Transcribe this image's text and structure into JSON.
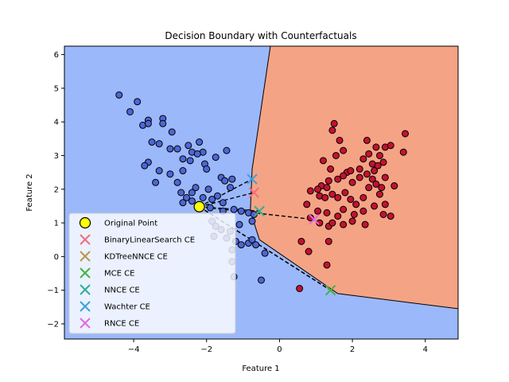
{
  "chart_data": {
    "type": "scatter",
    "title": "Decision Boundary with Counterfactuals",
    "xlabel": "Feature 1",
    "ylabel": "Feature 2",
    "xlim": [
      -5.9,
      4.9
    ],
    "ylim": [
      -2.45,
      6.25
    ],
    "xticks": [
      -4,
      -2,
      0,
      2,
      4
    ],
    "yticks": [
      -2,
      -1,
      0,
      1,
      2,
      3,
      4,
      5,
      6
    ],
    "legend_position": "lower-left",
    "colors": {
      "region_class0": "#9bb8fb",
      "region_class1": "#f4a485",
      "point_class0": "#4e66d6",
      "point_class1": "#c3122f",
      "original_point": "#ffff00",
      "connector": "#000000"
    },
    "boundary": [
      [
        -0.25,
        6.25
      ],
      [
        -0.75,
        2.6
      ],
      [
        -0.8,
        1.35
      ],
      [
        -0.55,
        0.5
      ],
      [
        1.6,
        -1.1
      ],
      [
        4.9,
        -1.55
      ]
    ],
    "class0_points": [
      [
        -4.4,
        4.8
      ],
      [
        -3.9,
        4.6
      ],
      [
        -4.1,
        4.3
      ],
      [
        -3.6,
        4.05
      ],
      [
        -3.75,
        3.9
      ],
      [
        -3.2,
        4.1
      ],
      [
        -3.2,
        3.95
      ],
      [
        -2.95,
        3.7
      ],
      [
        -3.6,
        3.95
      ],
      [
        -3.5,
        3.4
      ],
      [
        -3.3,
        3.35
      ],
      [
        -2.2,
        3.4
      ],
      [
        -2.5,
        3.3
      ],
      [
        -3.0,
        3.2
      ],
      [
        -2.8,
        3.2
      ],
      [
        -2.4,
        3.1
      ],
      [
        -2.1,
        3.1
      ],
      [
        -1.45,
        3.15
      ],
      [
        -2.25,
        3.05
      ],
      [
        -1.75,
        2.95
      ],
      [
        -3.6,
        2.8
      ],
      [
        -3.7,
        2.7
      ],
      [
        -2.65,
        2.9
      ],
      [
        -2.45,
        2.85
      ],
      [
        -2.05,
        2.75
      ],
      [
        -2.0,
        2.6
      ],
      [
        -3.3,
        2.55
      ],
      [
        -3.0,
        2.45
      ],
      [
        -2.65,
        2.55
      ],
      [
        -1.6,
        2.35
      ],
      [
        -1.5,
        2.25
      ],
      [
        -3.4,
        2.2
      ],
      [
        -2.8,
        2.2
      ],
      [
        -2.3,
        2.05
      ],
      [
        -1.95,
        2.0
      ],
      [
        -2.7,
        1.9
      ],
      [
        -2.4,
        1.9
      ],
      [
        -2.55,
        1.75
      ],
      [
        -2.1,
        1.75
      ],
      [
        -1.85,
        1.7
      ],
      [
        -1.7,
        1.8
      ],
      [
        -1.55,
        1.6
      ],
      [
        -2.65,
        1.6
      ],
      [
        -2.4,
        1.65
      ],
      [
        -1.9,
        1.45
      ],
      [
        -1.55,
        1.35
      ],
      [
        -1.25,
        1.4
      ],
      [
        -1.05,
        1.35
      ],
      [
        -0.85,
        1.3
      ],
      [
        -0.7,
        1.25
      ],
      [
        -1.85,
        1.05
      ],
      [
        -1.75,
        0.9
      ],
      [
        -1.6,
        0.8
      ],
      [
        -1.35,
        0.75
      ],
      [
        -1.2,
        0.45
      ],
      [
        -1.05,
        0.35
      ],
      [
        -0.85,
        0.4
      ],
      [
        -0.75,
        0.5
      ],
      [
        -0.65,
        0.35
      ],
      [
        -0.4,
        0.1
      ],
      [
        -1.3,
        0.2
      ],
      [
        -1.3,
        -0.15
      ],
      [
        -1.25,
        -0.6
      ],
      [
        -0.5,
        -0.7
      ],
      [
        -1.8,
        0.6
      ],
      [
        -1.45,
        0.55
      ],
      [
        -1.1,
        0.95
      ],
      [
        -0.75,
        1.05
      ],
      [
        -1.3,
        2.3
      ],
      [
        -1.35,
        2.05
      ]
    ],
    "class1_points": [
      [
        2.4,
        3.45
      ],
      [
        1.5,
        3.95
      ],
      [
        1.45,
        3.75
      ],
      [
        1.65,
        3.45
      ],
      [
        2.65,
        3.25
      ],
      [
        2.9,
        3.25
      ],
      [
        2.75,
        3.0
      ],
      [
        3.05,
        3.3
      ],
      [
        3.45,
        3.65
      ],
      [
        1.75,
        3.15
      ],
      [
        1.55,
        3.0
      ],
      [
        2.3,
        2.9
      ],
      [
        2.45,
        3.05
      ],
      [
        2.55,
        2.75
      ],
      [
        2.85,
        2.8
      ],
      [
        2.7,
        2.7
      ],
      [
        1.2,
        2.85
      ],
      [
        1.4,
        2.6
      ],
      [
        3.4,
        3.1
      ],
      [
        2.6,
        2.55
      ],
      [
        2.4,
        2.45
      ],
      [
        2.55,
        2.3
      ],
      [
        2.9,
        2.35
      ],
      [
        3.15,
        2.1
      ],
      [
        2.8,
        2.05
      ],
      [
        2.2,
        2.35
      ],
      [
        2.0,
        2.2
      ],
      [
        1.85,
        2.5
      ],
      [
        1.75,
        2.4
      ],
      [
        1.95,
        2.55
      ],
      [
        1.6,
        2.3
      ],
      [
        1.35,
        2.25
      ],
      [
        1.15,
        2.1
      ],
      [
        1.3,
        2.05
      ],
      [
        1.05,
        2.0
      ],
      [
        0.85,
        1.95
      ],
      [
        0.75,
        1.55
      ],
      [
        1.1,
        1.8
      ],
      [
        1.25,
        1.75
      ],
      [
        1.45,
        1.85
      ],
      [
        1.6,
        1.75
      ],
      [
        1.8,
        1.9
      ],
      [
        1.95,
        1.7
      ],
      [
        2.1,
        1.55
      ],
      [
        2.3,
        1.75
      ],
      [
        2.45,
        2.05
      ],
      [
        2.65,
        2.15
      ],
      [
        2.75,
        1.85
      ],
      [
        2.9,
        1.55
      ],
      [
        2.6,
        1.5
      ],
      [
        2.3,
        1.35
      ],
      [
        2.05,
        1.25
      ],
      [
        1.75,
        1.4
      ],
      [
        1.6,
        1.2
      ],
      [
        1.3,
        1.3
      ],
      [
        1.05,
        1.35
      ],
      [
        0.85,
        1.15
      ],
      [
        1.1,
        1.0
      ],
      [
        1.35,
        0.9
      ],
      [
        1.75,
        0.95
      ],
      [
        2.0,
        1.05
      ],
      [
        2.35,
        0.95
      ],
      [
        2.85,
        1.25
      ],
      [
        3.05,
        1.2
      ],
      [
        0.6,
        0.45
      ],
      [
        0.8,
        0.15
      ],
      [
        1.35,
        0.45
      ],
      [
        1.3,
        -0.25
      ],
      [
        0.55,
        -0.95
      ],
      [
        1.45,
        1.0
      ],
      [
        2.2,
        2.6
      ]
    ],
    "original_point": [
      -2.2,
      1.48
    ],
    "counterfactuals": [
      {
        "name": "BinaryLinearSearch CE",
        "color": "#ef6f7d",
        "x": -0.7,
        "y": 1.9
      },
      {
        "name": "KDTreeNNCE CE",
        "color": "#b89650",
        "x": 1.4,
        "y": -1.0
      },
      {
        "name": "MCE CE",
        "color": "#45b445",
        "x": 1.4,
        "y": -1.0
      },
      {
        "name": "NNCE CE",
        "color": "#2fae9a",
        "x": -0.55,
        "y": 1.35
      },
      {
        "name": "Wachter CE",
        "color": "#3b9fda",
        "x": -0.75,
        "y": 2.3
      },
      {
        "name": "RNCE CE",
        "color": "#e16ae5",
        "x": 0.95,
        "y": 1.1
      }
    ],
    "legend": {
      "original_label": "Original Point"
    }
  }
}
